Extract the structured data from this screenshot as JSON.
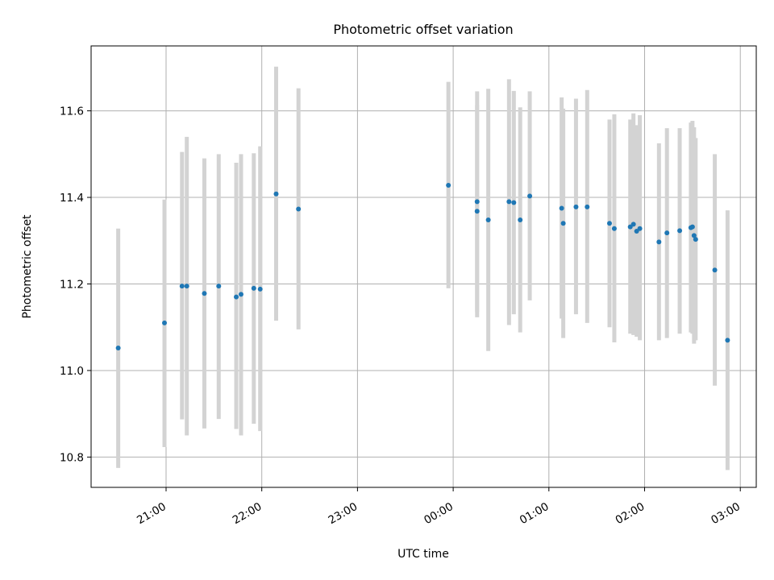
{
  "chart_data": {
    "type": "scatter",
    "title": "Photometric offset variation",
    "xlabel": "UTC time",
    "ylabel": "Photometric offset",
    "x_axis_type": "time",
    "xlim": [
      "20:13",
      "03:10"
    ],
    "ylim": [
      10.73,
      11.75
    ],
    "x_ticks": [
      "21:00",
      "22:00",
      "23:00",
      "00:00",
      "01:00",
      "02:00",
      "03:00"
    ],
    "y_ticks": [
      10.8,
      11.0,
      11.2,
      11.4,
      11.6
    ],
    "y_tick_labels": [
      "10.8",
      "11.0",
      "11.2",
      "11.4",
      "11.6"
    ],
    "grid": true,
    "errorbar_color": "#d3d3d3",
    "marker_color": "#1f77b4",
    "points": [
      {
        "x": "20:30",
        "y": 11.052,
        "low": 10.775,
        "high": 11.328
      },
      {
        "x": "20:59",
        "y": 11.11,
        "low": 10.823,
        "high": 11.395
      },
      {
        "x": "21:10",
        "y": 11.195,
        "low": 10.887,
        "high": 11.505
      },
      {
        "x": "21:13",
        "y": 11.195,
        "low": 10.85,
        "high": 11.54
      },
      {
        "x": "21:24",
        "y": 11.178,
        "low": 10.866,
        "high": 11.49
      },
      {
        "x": "21:33",
        "y": 11.195,
        "low": 10.888,
        "high": 11.5
      },
      {
        "x": "21:44",
        "y": 11.17,
        "low": 10.865,
        "high": 11.48
      },
      {
        "x": "21:47",
        "y": 11.176,
        "low": 10.85,
        "high": 11.5
      },
      {
        "x": "21:55",
        "y": 11.19,
        "low": 10.877,
        "high": 11.502
      },
      {
        "x": "21:59",
        "y": 11.188,
        "low": 10.86,
        "high": 11.518
      },
      {
        "x": "22:09",
        "y": 11.408,
        "low": 11.115,
        "high": 11.702
      },
      {
        "x": "22:23",
        "y": 11.373,
        "low": 11.095,
        "high": 11.652
      },
      {
        "x": "23:57",
        "y": 11.428,
        "low": 11.19,
        "high": 11.667
      },
      {
        "x": "00:15",
        "y": 11.39,
        "low": 11.135,
        "high": 11.645
      },
      {
        "x": "00:15",
        "y": 11.368,
        "low": 11.123,
        "high": 11.613
      },
      {
        "x": "00:22",
        "y": 11.348,
        "low": 11.045,
        "high": 11.651
      },
      {
        "x": "00:35",
        "y": 11.39,
        "low": 11.105,
        "high": 11.673
      },
      {
        "x": "00:38",
        "y": 11.388,
        "low": 11.13,
        "high": 11.646
      },
      {
        "x": "00:42",
        "y": 11.348,
        "low": 11.088,
        "high": 11.608
      },
      {
        "x": "00:48",
        "y": 11.403,
        "low": 11.162,
        "high": 11.645
      },
      {
        "x": "01:08",
        "y": 11.375,
        "low": 11.12,
        "high": 11.631
      },
      {
        "x": "01:09",
        "y": 11.34,
        "low": 11.075,
        "high": 11.605
      },
      {
        "x": "01:17",
        "y": 11.378,
        "low": 11.13,
        "high": 11.628
      },
      {
        "x": "01:24",
        "y": 11.378,
        "low": 11.11,
        "high": 11.648
      },
      {
        "x": "01:38",
        "y": 11.34,
        "low": 11.1,
        "high": 11.58
      },
      {
        "x": "01:41",
        "y": 11.328,
        "low": 11.065,
        "high": 11.592
      },
      {
        "x": "01:51",
        "y": 11.332,
        "low": 11.085,
        "high": 11.58
      },
      {
        "x": "01:53",
        "y": 11.338,
        "low": 11.082,
        "high": 11.594
      },
      {
        "x": "01:55",
        "y": 11.322,
        "low": 11.078,
        "high": 11.567
      },
      {
        "x": "01:57",
        "y": 11.328,
        "low": 11.07,
        "high": 11.59
      },
      {
        "x": "02:09",
        "y": 11.297,
        "low": 11.07,
        "high": 11.525
      },
      {
        "x": "02:14",
        "y": 11.318,
        "low": 11.075,
        "high": 11.56
      },
      {
        "x": "02:22",
        "y": 11.323,
        "low": 11.085,
        "high": 11.56
      },
      {
        "x": "02:29",
        "y": 11.33,
        "low": 11.088,
        "high": 11.573
      },
      {
        "x": "02:30",
        "y": 11.332,
        "low": 11.085,
        "high": 11.577
      },
      {
        "x": "02:31",
        "y": 11.312,
        "low": 11.062,
        "high": 11.562
      },
      {
        "x": "02:32",
        "y": 11.303,
        "low": 11.07,
        "high": 11.537
      },
      {
        "x": "02:44",
        "y": 11.232,
        "low": 10.965,
        "high": 11.5
      },
      {
        "x": "02:52",
        "y": 11.07,
        "low": 10.77,
        "high": 11.37
      }
    ]
  }
}
